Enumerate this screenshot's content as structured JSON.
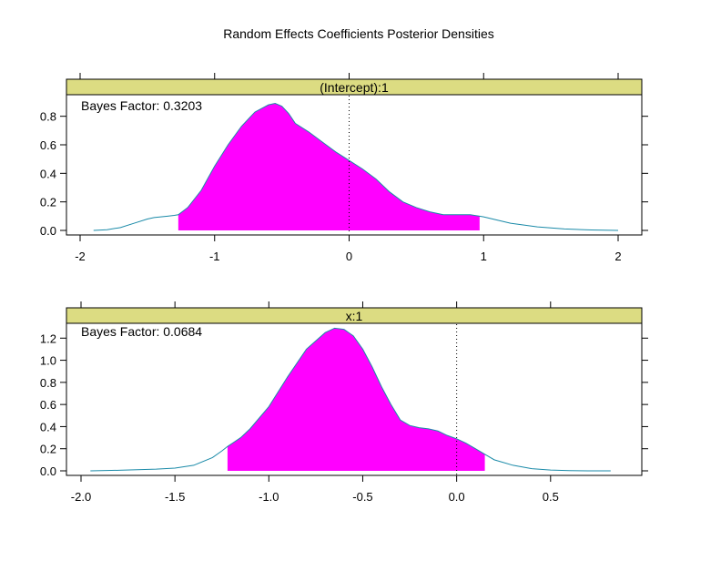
{
  "title": "Random Effects Coefficients Posterior Densities",
  "colors": {
    "strip": "#dcdc82",
    "fill": "#ff00ff",
    "line": "#1a8aa8",
    "axis": "#000000"
  },
  "chart_data": [
    {
      "type": "area",
      "strip_label": "(Intercept):1",
      "annotation": "Bayes Factor: 0.3203",
      "xlim": [
        -2,
        2
      ],
      "ylim": [
        0,
        0.9
      ],
      "x_ticks": [
        "-2",
        "-1",
        "0",
        "1",
        "2"
      ],
      "x_tick_values": [
        -2,
        -1,
        0,
        1,
        2
      ],
      "y_ticks": [
        "0.0",
        "0.2",
        "0.4",
        "0.6",
        "0.8"
      ],
      "y_tick_values": [
        0,
        0.2,
        0.4,
        0.6,
        0.8
      ],
      "reference_line_x": 0,
      "shaded_interval": [
        -1.27,
        0.97
      ],
      "x": [
        -1.9,
        -1.8,
        -1.7,
        -1.6,
        -1.5,
        -1.45,
        -1.4,
        -1.35,
        -1.3,
        -1.27,
        -1.2,
        -1.1,
        -1.0,
        -0.9,
        -0.8,
        -0.7,
        -0.6,
        -0.55,
        -0.5,
        -0.45,
        -0.4,
        -0.3,
        -0.2,
        -0.1,
        0.0,
        0.1,
        0.2,
        0.3,
        0.4,
        0.5,
        0.6,
        0.7,
        0.8,
        0.9,
        0.97,
        1.0,
        1.2,
        1.4,
        1.6,
        1.8,
        2.0
      ],
      "y": [
        0.0,
        0.005,
        0.02,
        0.05,
        0.08,
        0.09,
        0.095,
        0.1,
        0.105,
        0.11,
        0.16,
        0.28,
        0.45,
        0.6,
        0.73,
        0.83,
        0.88,
        0.89,
        0.87,
        0.82,
        0.75,
        0.69,
        0.62,
        0.55,
        0.49,
        0.43,
        0.36,
        0.27,
        0.2,
        0.16,
        0.13,
        0.11,
        0.11,
        0.11,
        0.1,
        0.095,
        0.05,
        0.025,
        0.01,
        0.003,
        0.0
      ]
    },
    {
      "type": "area",
      "strip_label": "x:1",
      "annotation": "Bayes Factor: 0.0684",
      "xlim": [
        -2.0,
        0.85
      ],
      "ylim": [
        0,
        1.33
      ],
      "x_ticks": [
        "-2.0",
        "-1.5",
        "-1.0",
        "-0.5",
        "0.0",
        "0.5"
      ],
      "x_tick_values": [
        -2.0,
        -1.5,
        -1.0,
        -0.5,
        0.0,
        0.5
      ],
      "y_ticks": [
        "0.0",
        "0.2",
        "0.4",
        "0.6",
        "0.8",
        "1.0",
        "1.2"
      ],
      "y_tick_values": [
        0,
        0.2,
        0.4,
        0.6,
        0.8,
        1.0,
        1.2
      ],
      "reference_line_x": 0,
      "shaded_interval": [
        -1.22,
        0.15
      ],
      "x": [
        -1.95,
        -1.8,
        -1.6,
        -1.5,
        -1.4,
        -1.3,
        -1.25,
        -1.22,
        -1.15,
        -1.1,
        -1.0,
        -0.9,
        -0.8,
        -0.7,
        -0.65,
        -0.6,
        -0.55,
        -0.5,
        -0.45,
        -0.4,
        -0.35,
        -0.3,
        -0.25,
        -0.2,
        -0.15,
        -0.1,
        -0.05,
        0.0,
        0.05,
        0.1,
        0.15,
        0.2,
        0.3,
        0.4,
        0.5,
        0.6,
        0.7,
        0.82
      ],
      "y": [
        0.0,
        0.005,
        0.015,
        0.025,
        0.05,
        0.12,
        0.18,
        0.22,
        0.3,
        0.38,
        0.58,
        0.85,
        1.1,
        1.25,
        1.29,
        1.28,
        1.22,
        1.1,
        0.94,
        0.76,
        0.6,
        0.46,
        0.41,
        0.39,
        0.38,
        0.36,
        0.32,
        0.29,
        0.25,
        0.2,
        0.15,
        0.1,
        0.05,
        0.02,
        0.007,
        0.002,
        0.0,
        0.0
      ]
    }
  ]
}
